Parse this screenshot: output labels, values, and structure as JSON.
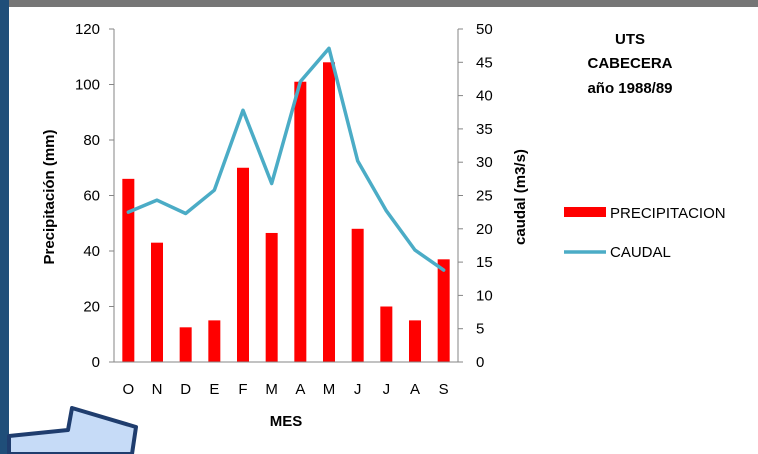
{
  "chart_data": {
    "type": "bar",
    "categories": [
      "O",
      "N",
      "D",
      "E",
      "F",
      "M",
      "A",
      "M",
      "J",
      "J",
      "A",
      "S"
    ],
    "series": [
      {
        "name": "PRECIPITACION",
        "type": "bar",
        "axis": "left",
        "color": "#ff0000",
        "values": [
          66,
          43,
          12.5,
          15,
          70,
          46.5,
          101,
          108,
          48,
          20,
          15,
          37
        ]
      },
      {
        "name": "CAUDAL",
        "type": "line",
        "axis": "right",
        "color": "#4bacc6",
        "values": [
          22.5,
          24.3,
          22.3,
          25.8,
          37.8,
          26.8,
          42.1,
          47.1,
          30.2,
          22.7,
          16.8,
          13.8
        ]
      }
    ],
    "xlabel": "MES",
    "ylabel": "Precipitación  (mm)",
    "y2label": "caudal (m3/s)",
    "ylim": [
      0,
      120
    ],
    "y_ticks": [
      0,
      20,
      40,
      60,
      80,
      100,
      120
    ],
    "y2lim": [
      0,
      50
    ],
    "y2_ticks": [
      0,
      5,
      10,
      15,
      20,
      25,
      30,
      35,
      40,
      45,
      50
    ],
    "annotation": [
      "UTS",
      "CABECERA",
      "año 1988/89"
    ],
    "legend_position": "right",
    "grid": false
  }
}
